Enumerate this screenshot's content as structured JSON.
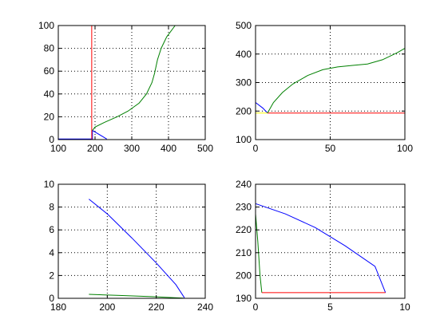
{
  "window": {
    "background": "#ffffff"
  },
  "chart_data": [
    {
      "type": "line",
      "title": "",
      "xlabel": "",
      "ylabel": "",
      "xlim": [
        100,
        500
      ],
      "ylim": [
        0,
        100
      ],
      "xticks": [
        100,
        200,
        300,
        400,
        500
      ],
      "yticks": [
        0,
        20,
        40,
        60,
        80,
        100
      ],
      "grid": true,
      "series": [
        {
          "color": "#0000ff",
          "points": [
            [
              100,
              0.5
            ],
            [
              193,
              0.5
            ],
            [
              193,
              8
            ],
            [
              232,
              0.5
            ]
          ]
        },
        {
          "color": "#ff0000",
          "points": [
            [
              191,
              0
            ],
            [
              191,
              100
            ]
          ]
        },
        {
          "color": "#008000",
          "points": [
            [
              193,
              8
            ],
            [
              200,
              11
            ],
            [
              225,
              15
            ],
            [
              260,
              20
            ],
            [
              290,
              25
            ],
            [
              320,
              32
            ],
            [
              340,
              40
            ],
            [
              355,
              50
            ],
            [
              362,
              58
            ],
            [
              370,
              70
            ],
            [
              380,
              80
            ],
            [
              395,
              90
            ],
            [
              418,
              100
            ]
          ]
        }
      ]
    },
    {
      "type": "line",
      "title": "",
      "xlabel": "",
      "ylabel": "",
      "xlim": [
        0,
        100
      ],
      "ylim": [
        100,
        500
      ],
      "xticks": [
        0,
        50,
        100
      ],
      "yticks": [
        100,
        200,
        300,
        400,
        500
      ],
      "grid": true,
      "series": [
        {
          "color": "#0000ff",
          "points": [
            [
              0,
              230
            ],
            [
              5,
              210
            ],
            [
              8,
              193
            ]
          ]
        },
        {
          "color": "#ffff00",
          "points": [
            [
              0,
              193
            ],
            [
              8,
              193
            ]
          ]
        },
        {
          "color": "#ff0000",
          "points": [
            [
              8,
              193
            ],
            [
              100,
              193
            ],
            [
              100,
              100
            ]
          ]
        },
        {
          "color": "#008000",
          "points": [
            [
              8,
              193
            ],
            [
              12,
              230
            ],
            [
              18,
              265
            ],
            [
              25,
              295
            ],
            [
              35,
              325
            ],
            [
              45,
              345
            ],
            [
              55,
              355
            ],
            [
              65,
              360
            ],
            [
              75,
              365
            ],
            [
              85,
              380
            ],
            [
              95,
              405
            ],
            [
              100,
              420
            ]
          ]
        },
        {
          "color": "#00bfbf",
          "points": [
            [
              100,
              420
            ],
            [
              100,
              193
            ]
          ]
        }
      ]
    },
    {
      "type": "line",
      "title": "",
      "xlabel": "",
      "ylabel": "",
      "xlim": [
        180,
        240
      ],
      "ylim": [
        0,
        10
      ],
      "xticks": [
        180,
        200,
        220,
        240
      ],
      "yticks": [
        0,
        2,
        4,
        6,
        8,
        10
      ],
      "grid": true,
      "series": [
        {
          "color": "#0000ff",
          "points": [
            [
              192.5,
              8.7
            ],
            [
              200,
              7.4
            ],
            [
              210,
              5.3
            ],
            [
              220,
              3.1
            ],
            [
              228,
              1.2
            ],
            [
              231.5,
              0.05
            ]
          ]
        },
        {
          "color": "#008000",
          "points": [
            [
              192.5,
              0.35
            ],
            [
              205,
              0.25
            ],
            [
              218,
              0.15
            ],
            [
              231,
              0.02
            ]
          ]
        },
        {
          "color": "#ff0000",
          "points": [
            [
              231,
              0
            ],
            [
              232,
              0
            ]
          ]
        }
      ]
    },
    {
      "type": "line",
      "title": "",
      "xlabel": "",
      "ylabel": "",
      "xlim": [
        0,
        10
      ],
      "ylim": [
        190,
        240
      ],
      "xticks": [
        0,
        5,
        10
      ],
      "yticks": [
        190,
        200,
        210,
        220,
        230,
        240
      ],
      "grid": true,
      "series": [
        {
          "color": "#0000ff",
          "points": [
            [
              0,
              231.5
            ],
            [
              2,
              227
            ],
            [
              4,
              221
            ],
            [
              6,
              213
            ],
            [
              8,
              204
            ],
            [
              8.7,
              192.5
            ]
          ]
        },
        {
          "color": "#008000",
          "points": [
            [
              0,
              227
            ],
            [
              0.15,
              215
            ],
            [
              0.3,
              200
            ],
            [
              0.42,
              192.5
            ]
          ]
        },
        {
          "color": "#ff0000",
          "points": [
            [
              0.42,
              192.5
            ],
            [
              8.7,
              192.5
            ]
          ]
        }
      ]
    }
  ]
}
